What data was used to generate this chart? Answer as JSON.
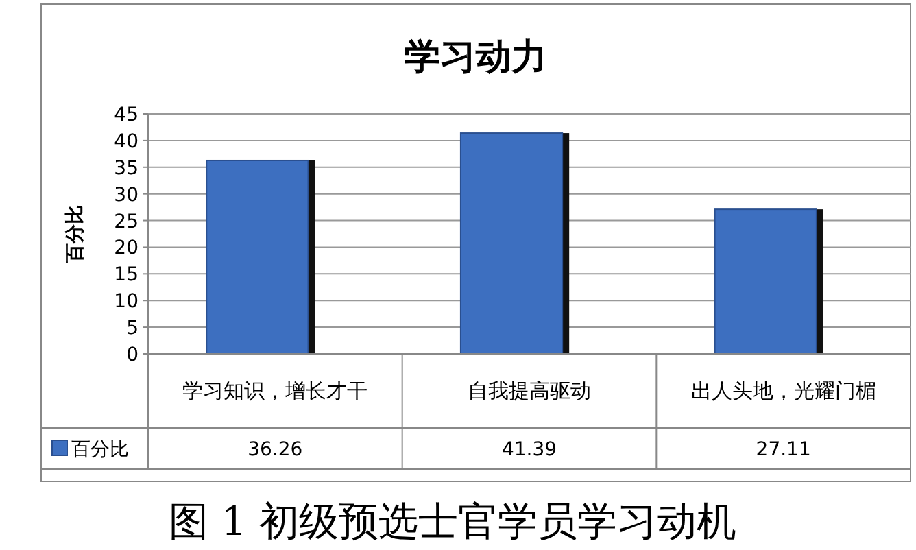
{
  "chart_data": {
    "type": "bar",
    "title": "学习动力",
    "ylabel": "百分比",
    "categories": [
      "学习知识，增长才干",
      "自我提高驱动",
      "出人头地，光耀门楣"
    ],
    "series": [
      {
        "name": "百分比",
        "color": "#3d6fc0",
        "values": [
          36.26,
          41.39,
          27.11
        ]
      }
    ],
    "ylim": [
      0,
      45
    ],
    "yticks": [
      0,
      5,
      10,
      15,
      20,
      25,
      30,
      35,
      40,
      45
    ],
    "grid": "y",
    "data_labels": true,
    "legend": "bottom",
    "annotations": [
      "图 1 初级预选士官学员学习动机"
    ]
  }
}
